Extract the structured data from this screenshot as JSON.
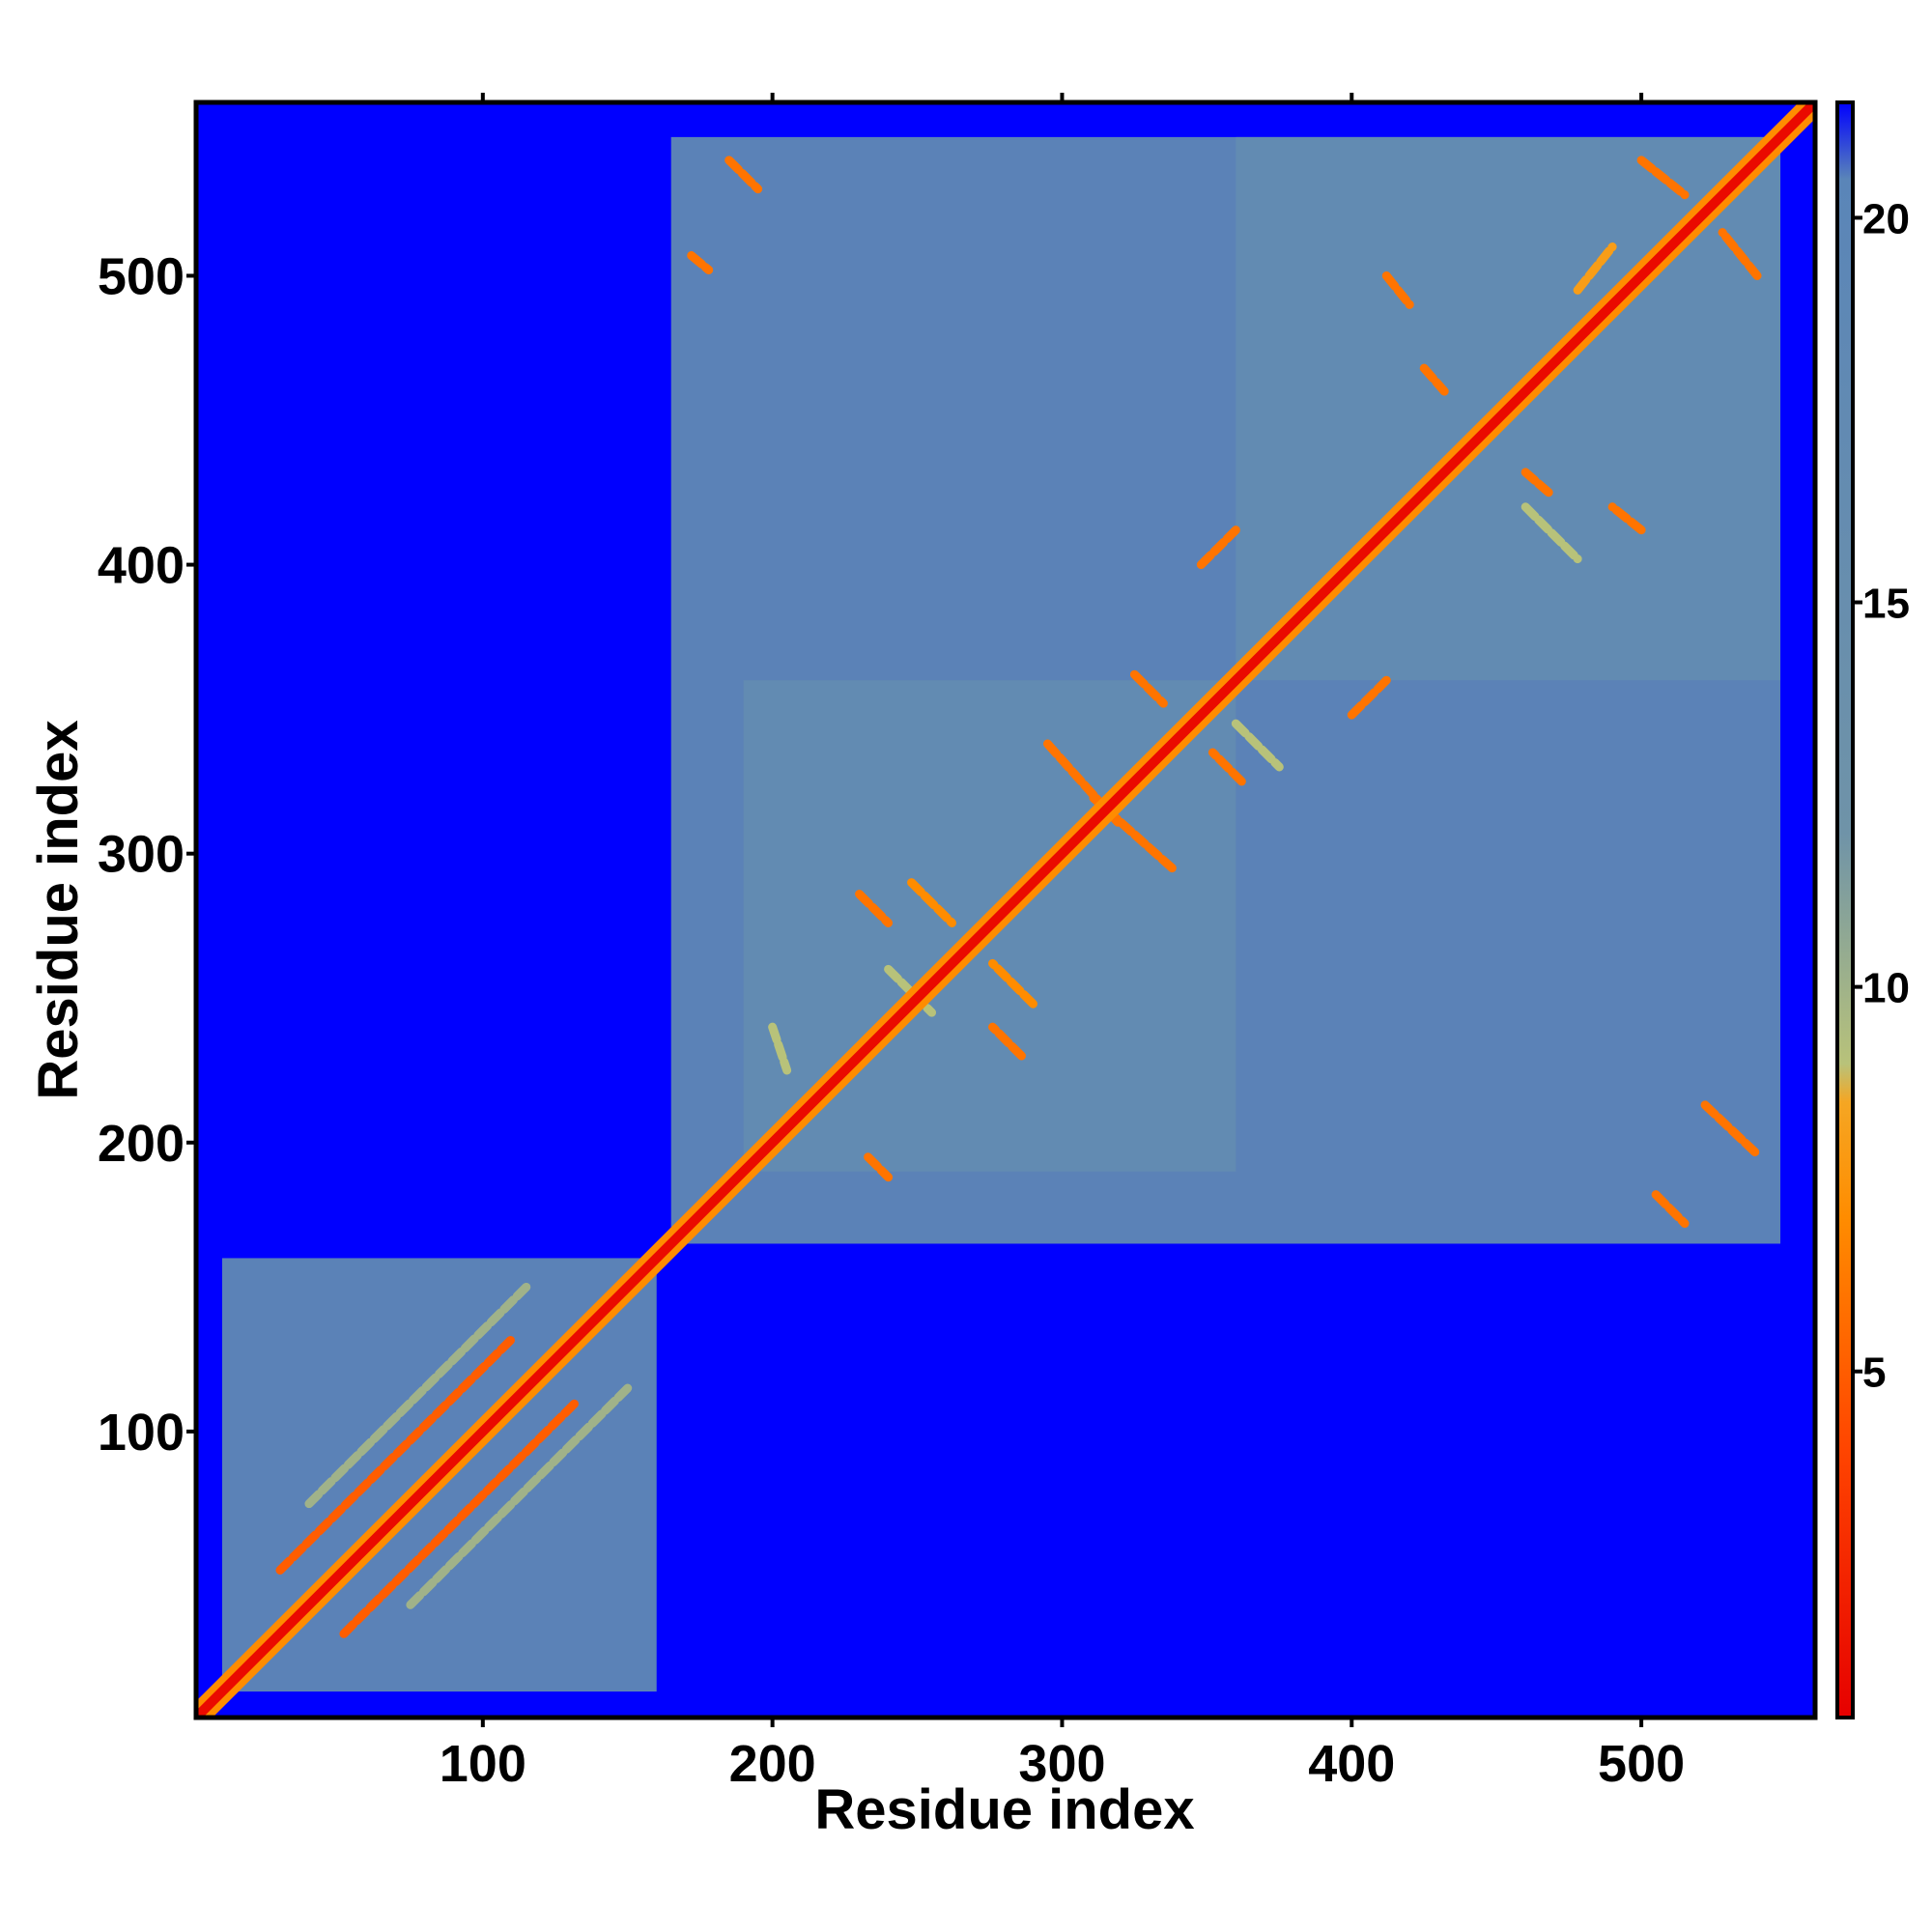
{
  "chart_data": {
    "type": "heatmap",
    "title": "",
    "xlabel": "Residue index",
    "ylabel": "Residue index",
    "xlim": [
      1,
      560
    ],
    "ylim": [
      1,
      560
    ],
    "x_ticks": [
      100,
      200,
      300,
      400,
      500
    ],
    "y_ticks": [
      100,
      200,
      300,
      400,
      500
    ],
    "x_tick_labels": [
      "100",
      "200",
      "300",
      "400",
      "500"
    ],
    "y_tick_labels": [
      "100",
      "200",
      "300",
      "400",
      "500"
    ],
    "colorbar": {
      "range": [
        0.5,
        21.5
      ],
      "ticks": [
        5,
        10,
        15,
        20
      ],
      "tick_labels": [
        "5",
        "10",
        "15",
        "20"
      ],
      "stops": [
        {
          "value": 0.5,
          "color": "#e60000"
        },
        {
          "value": 4,
          "color": "#ff4500"
        },
        {
          "value": 7,
          "color": "#ff8c00"
        },
        {
          "value": 8.5,
          "color": "#f5a623"
        },
        {
          "value": 9,
          "color": "#b8c27a"
        },
        {
          "value": 12,
          "color": "#6f93a8"
        },
        {
          "value": 20.5,
          "color": "#5a85b8"
        },
        {
          "value": 21.5,
          "color": "#0000ff"
        }
      ]
    },
    "background_value": 21,
    "background_color": "#0000ff",
    "domain_color": "#5a85b8",
    "domains": [
      {
        "start": 10,
        "end": 160,
        "value": 18
      },
      {
        "start": 165,
        "end": 548,
        "value": 18
      },
      {
        "start": 190,
        "end": 360,
        "value": 17
      },
      {
        "start": 360,
        "end": 548,
        "value": 17
      }
    ],
    "diagonal_band": {
      "from": 1,
      "to": 560,
      "value": 1
    },
    "contact_lines": [
      {
        "x1": 30,
        "y1": 52,
        "x2": 110,
        "y2": 132,
        "value": 5
      },
      {
        "x1": 52,
        "y1": 30,
        "x2": 132,
        "y2": 110,
        "value": 5
      },
      {
        "x1": 40,
        "y1": 75,
        "x2": 115,
        "y2": 150,
        "value": 10
      },
      {
        "x1": 75,
        "y1": 40,
        "x2": 150,
        "y2": 115,
        "value": 10
      },
      {
        "x1": 185,
        "y1": 540,
        "x2": 195,
        "y2": 530,
        "value": 6
      },
      {
        "x1": 172,
        "y1": 507,
        "x2": 178,
        "y2": 502,
        "value": 6
      },
      {
        "x1": 230,
        "y1": 286,
        "x2": 240,
        "y2": 276,
        "value": 6
      },
      {
        "x1": 248,
        "y1": 290,
        "x2": 262,
        "y2": 276,
        "value": 7
      },
      {
        "x1": 286,
        "y1": 230,
        "x2": 276,
        "y2": 240,
        "value": 6
      },
      {
        "x1": 290,
        "y1": 248,
        "x2": 276,
        "y2": 262,
        "value": 7
      },
      {
        "x1": 295,
        "y1": 338,
        "x2": 320,
        "y2": 310,
        "value": 6
      },
      {
        "x1": 338,
        "y1": 295,
        "x2": 310,
        "y2": 320,
        "value": 6
      },
      {
        "x1": 325,
        "y1": 362,
        "x2": 335,
        "y2": 352,
        "value": 6
      },
      {
        "x1": 362,
        "y1": 325,
        "x2": 352,
        "y2": 335,
        "value": 6
      },
      {
        "x1": 400,
        "y1": 348,
        "x2": 412,
        "y2": 360,
        "value": 6
      },
      {
        "x1": 348,
        "y1": 400,
        "x2": 360,
        "y2": 412,
        "value": 6
      },
      {
        "x1": 412,
        "y1": 500,
        "x2": 420,
        "y2": 490,
        "value": 6
      },
      {
        "x1": 500,
        "y1": 412,
        "x2": 490,
        "y2": 420,
        "value": 6
      },
      {
        "x1": 425,
        "y1": 468,
        "x2": 432,
        "y2": 460,
        "value": 6
      },
      {
        "x1": 468,
        "y1": 425,
        "x2": 460,
        "y2": 432,
        "value": 6
      },
      {
        "x1": 500,
        "y1": 540,
        "x2": 515,
        "y2": 528,
        "value": 6
      },
      {
        "x1": 540,
        "y1": 500,
        "x2": 528,
        "y2": 515,
        "value": 6
      },
      {
        "x1": 522,
        "y1": 213,
        "x2": 540,
        "y2": 196,
        "value": 6
      },
      {
        "x1": 505,
        "y1": 182,
        "x2": 515,
        "y2": 172,
        "value": 6
      },
      {
        "x1": 233,
        "y1": 195,
        "x2": 240,
        "y2": 188,
        "value": 6
      },
      {
        "x1": 360,
        "y1": 345,
        "x2": 375,
        "y2": 330,
        "value": 9
      },
      {
        "x1": 460,
        "y1": 420,
        "x2": 478,
        "y2": 402,
        "value": 9
      },
      {
        "x1": 478,
        "y1": 495,
        "x2": 490,
        "y2": 510,
        "value": 8
      },
      {
        "x1": 240,
        "y1": 260,
        "x2": 255,
        "y2": 245,
        "value": 9
      },
      {
        "x1": 200,
        "y1": 240,
        "x2": 205,
        "y2": 225,
        "value": 9
      }
    ]
  }
}
